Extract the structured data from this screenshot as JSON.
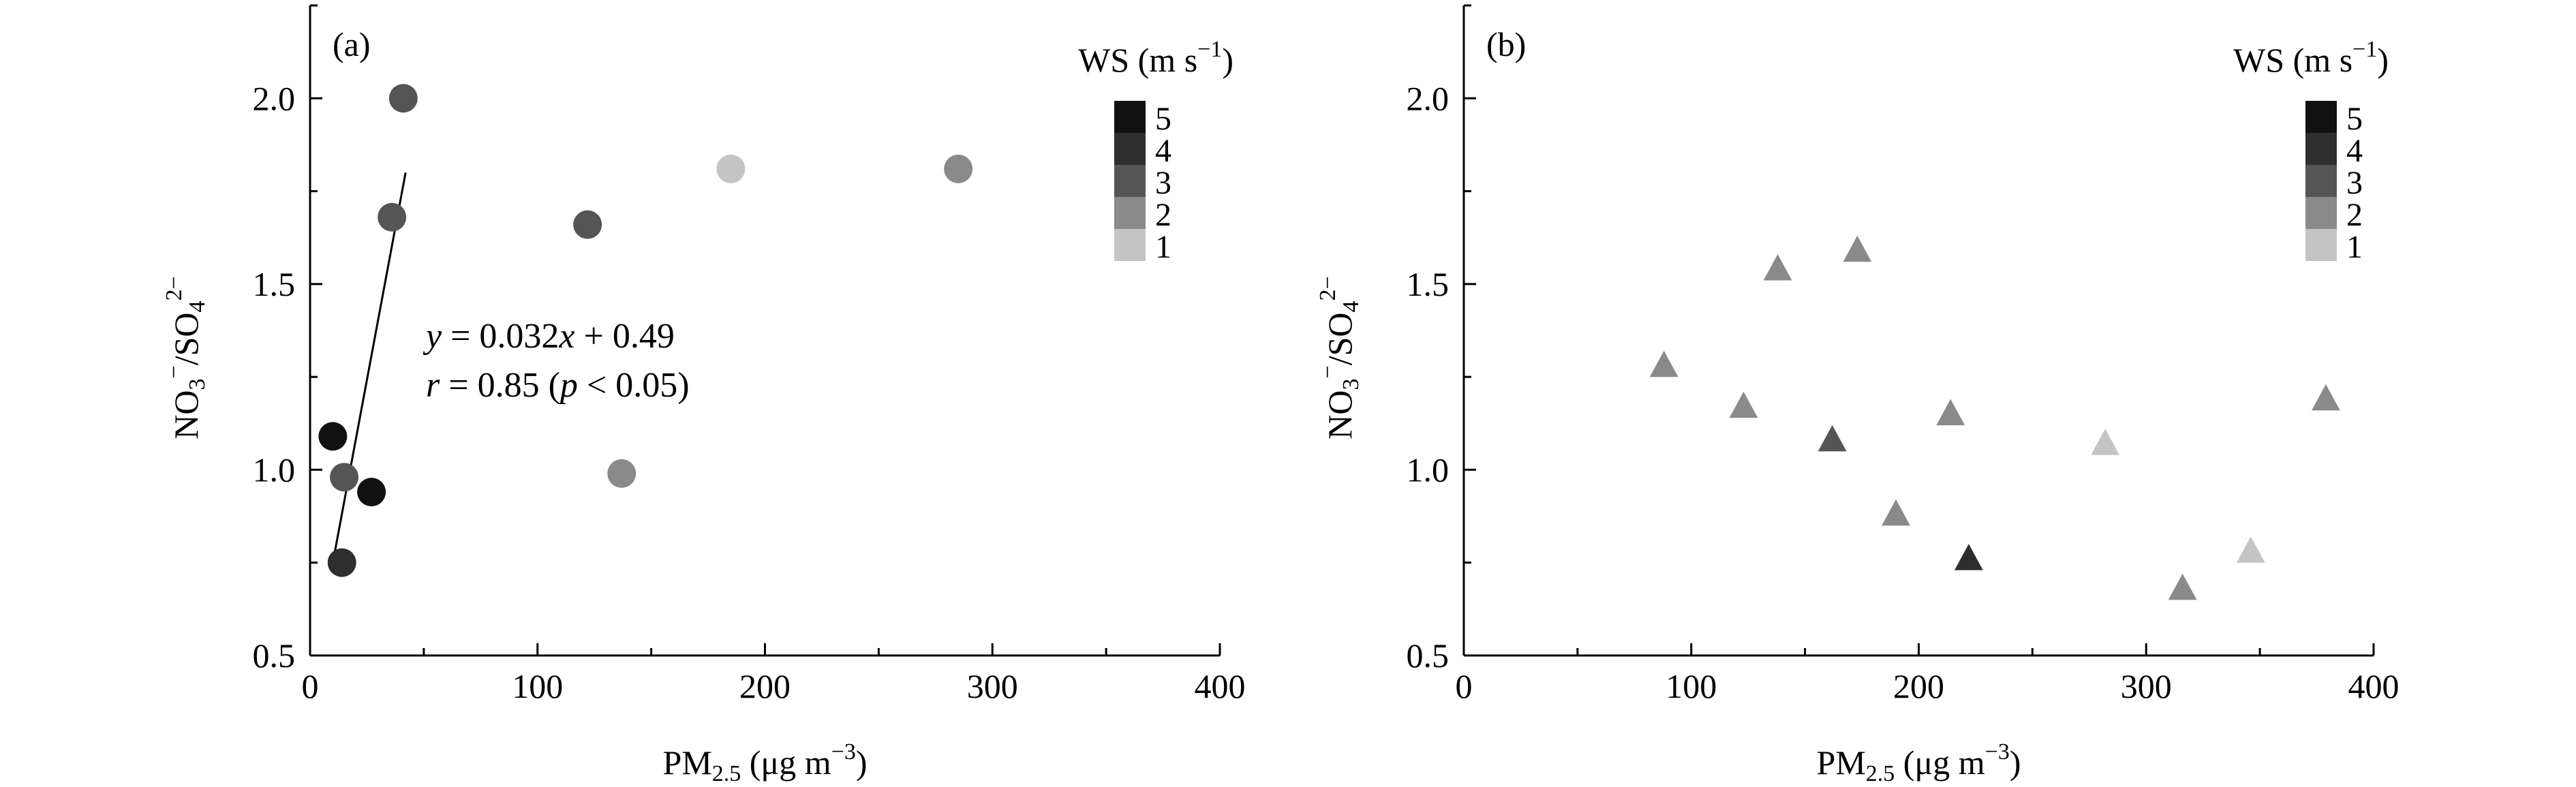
{
  "chart_data": [
    {
      "type": "scatter",
      "panel_label": "(a)",
      "x_ticks": [
        "0",
        "100",
        "200",
        "300",
        "400"
      ],
      "y_ticks": [
        "0.5",
        "1.0",
        "1.5",
        "2.0"
      ],
      "xlim": [
        0,
        400
      ],
      "ylim": [
        0.5,
        2.25
      ],
      "xlabel_main": "PM",
      "xlabel_sub": "2.5",
      "xlabel_unit": " (μg m",
      "xlabel_unit_sup": "−3",
      "xlabel_close": ")",
      "ylabel_no3": "NO",
      "ylabel_no3_sub": "3",
      "ylabel_no3_sup": "−",
      "ylabel_slash": "/SO",
      "ylabel_so4_sub": "4",
      "ylabel_so4_sup": "2−",
      "legend_title": "WS (m s",
      "legend_title_sup": "−1",
      "legend_title_close": ")",
      "marker": "circle",
      "points": [
        {
          "x": 10,
          "y": 1.09,
          "ws": 5
        },
        {
          "x": 15,
          "y": 0.98,
          "ws": 3
        },
        {
          "x": 14,
          "y": 0.75,
          "ws": 4
        },
        {
          "x": 27,
          "y": 0.94,
          "ws": 5
        },
        {
          "x": 36,
          "y": 1.68,
          "ws": 3
        },
        {
          "x": 41,
          "y": 2.0,
          "ws": 3
        },
        {
          "x": 122,
          "y": 1.66,
          "ws": 3
        },
        {
          "x": 137,
          "y": 0.99,
          "ws": 2
        },
        {
          "x": 185,
          "y": 1.81,
          "ws": 1
        },
        {
          "x": 285,
          "y": 1.81,
          "ws": 2
        }
      ],
      "fit_line": {
        "x": [
          10,
          42
        ],
        "y": [
          0.75,
          1.8
        ]
      },
      "annotation": {
        "line1_y": "y",
        "line1_eq": " = 0.032",
        "line1_x": "x",
        "line1_rest": " + 0.49",
        "line2_r": "r",
        "line2_eq": " = 0.85 (",
        "line2_p": "p",
        "line2_rest": " < 0.05)"
      }
    },
    {
      "type": "scatter",
      "panel_label": "(b)",
      "x_ticks": [
        "0",
        "100",
        "200",
        "300",
        "400"
      ],
      "y_ticks": [
        "0.5",
        "1.0",
        "1.5",
        "2.0"
      ],
      "xlim": [
        0,
        400
      ],
      "ylim": [
        0.5,
        2.25
      ],
      "xlabel_main": "PM",
      "xlabel_sub": "2.5",
      "xlabel_unit": " (μg m",
      "xlabel_unit_sup": "−3",
      "xlabel_close": ")",
      "ylabel_no3": "NO",
      "ylabel_no3_sub": "3",
      "ylabel_no3_sup": "−",
      "ylabel_slash": "/SO",
      "ylabel_so4_sub": "4",
      "ylabel_so4_sup": "2−",
      "legend_title": "WS (m s",
      "legend_title_sup": "−1",
      "legend_title_close": ")",
      "marker": "triangle",
      "points": [
        {
          "x": 88,
          "y": 1.28,
          "ws": 2
        },
        {
          "x": 123,
          "y": 1.17,
          "ws": 2
        },
        {
          "x": 138,
          "y": 1.54,
          "ws": 2
        },
        {
          "x": 162,
          "y": 1.08,
          "ws": 3
        },
        {
          "x": 173,
          "y": 1.59,
          "ws": 2
        },
        {
          "x": 190,
          "y": 0.88,
          "ws": 2
        },
        {
          "x": 214,
          "y": 1.15,
          "ws": 2
        },
        {
          "x": 222,
          "y": 0.76,
          "ws": 4
        },
        {
          "x": 282,
          "y": 1.07,
          "ws": 1
        },
        {
          "x": 316,
          "y": 0.68,
          "ws": 2
        },
        {
          "x": 346,
          "y": 0.78,
          "ws": 1
        },
        {
          "x": 379,
          "y": 1.19,
          "ws": 2
        }
      ]
    }
  ],
  "legend_levels": [
    {
      "label": "5",
      "color": "#111111"
    },
    {
      "label": "4",
      "color": "#2e2e2e"
    },
    {
      "label": "3",
      "color": "#555555"
    },
    {
      "label": "2",
      "color": "#8a8a8a"
    },
    {
      "label": "1",
      "color": "#c4c4c4"
    }
  ]
}
